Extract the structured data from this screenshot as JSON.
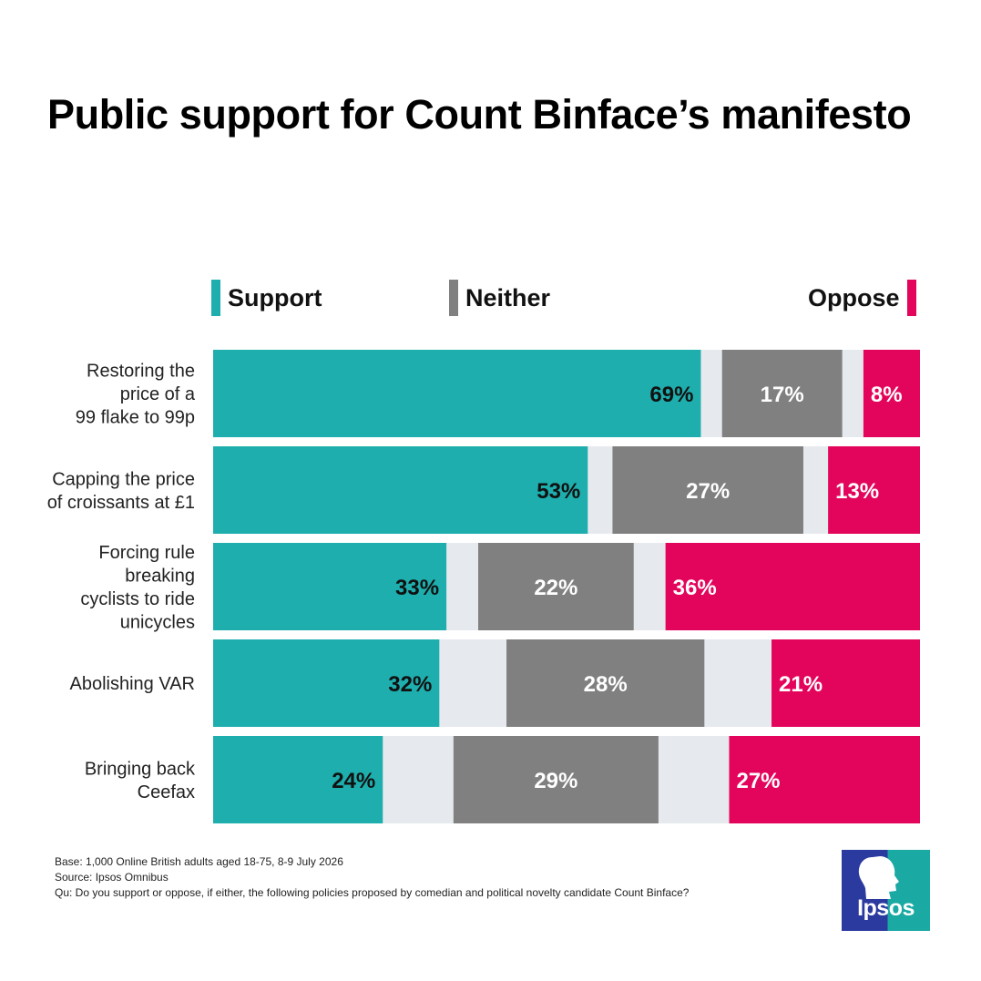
{
  "colors": {
    "support": "#1eaead",
    "neither": "#808080",
    "oppose": "#e3055b",
    "gap": "#e6e9ee"
  },
  "legend": {
    "support": "Support",
    "neither": "Neither",
    "oppose": "Oppose"
  },
  "footer": {
    "base": "Base: 1,000 Online British adults aged 18-75, 8-9 July 2026",
    "source": "Source: Ipsos Omnibus",
    "question": "Qu: Do you support or oppose, if either, the following policies proposed by comedian and political novelty candidate Count Binface?"
  },
  "logo": {
    "text": "Ipsos",
    "icon": "ipsos-head-icon"
  },
  "chart_data": {
    "type": "bar",
    "stacked": true,
    "orientation": "horizontal",
    "title": "Public support for Count Binface’s manifesto",
    "categories": [
      [
        "Restoring the",
        "price of a",
        "99 flake to 99p"
      ],
      [
        "Capping the price",
        "of croissants at £1"
      ],
      [
        "Forcing rule",
        "breaking",
        "cyclists to ride",
        "unicycles"
      ],
      [
        "Abolishing VAR"
      ],
      [
        "Bringing back",
        "Ceefax"
      ]
    ],
    "series": [
      {
        "name": "Support",
        "values": [
          69,
          53,
          33,
          32,
          24
        ]
      },
      {
        "name": "Neither",
        "values": [
          17,
          27,
          22,
          28,
          29
        ]
      },
      {
        "name": "Oppose",
        "values": [
          8,
          13,
          36,
          21,
          27
        ]
      }
    ],
    "value_suffix": "%",
    "xlim": [
      0,
      100
    ],
    "legend_position": "top",
    "grid": false
  }
}
